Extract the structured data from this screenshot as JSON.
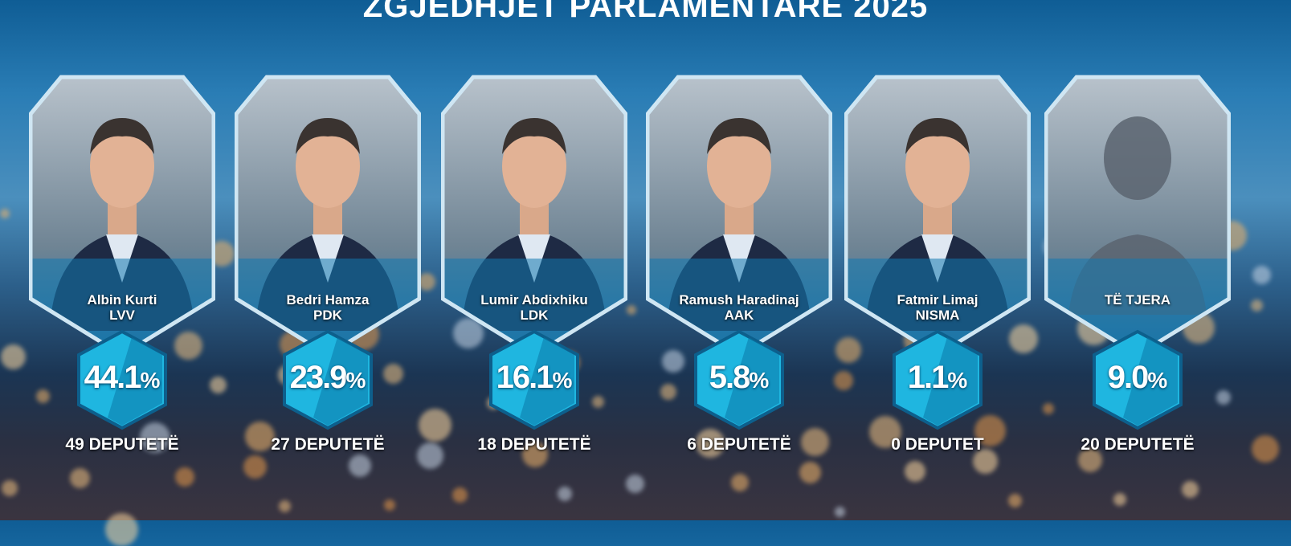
{
  "title": "ZGJEDHJET PARLAMENTARE 2025",
  "colors": {
    "badge": "#1fb6e0",
    "badge_dark": "#0a78a8",
    "frame": "#cfe6f3"
  },
  "candidates": [
    {
      "name": "Albin Kurti",
      "party": "LVV",
      "percent": "44.1",
      "percent_sign": "%",
      "seats": "49 DEPUTETË",
      "photo": "portrait"
    },
    {
      "name": "Bedri Hamza",
      "party": "PDK",
      "percent": "23.9",
      "percent_sign": "%",
      "seats": "27 DEPUTETË",
      "photo": "portrait"
    },
    {
      "name": "Lumir Abdixhiku",
      "party": "LDK",
      "percent": "16.1",
      "percent_sign": "%",
      "seats": "18 DEPUTETË",
      "photo": "portrait"
    },
    {
      "name": "Ramush Haradinaj",
      "party": "AAK",
      "percent": "5.8",
      "percent_sign": "%",
      "seats": "6 DEPUTETË",
      "photo": "portrait"
    },
    {
      "name": "Fatmir Limaj",
      "party": "NISMA",
      "percent": "1.1",
      "percent_sign": "%",
      "seats": "0 DEPUTET",
      "photo": "portrait"
    },
    {
      "name": "TË TJERA",
      "party": "",
      "percent": "9.0",
      "percent_sign": "%",
      "seats": "20 DEPUTETË",
      "photo": "silhouette"
    }
  ]
}
